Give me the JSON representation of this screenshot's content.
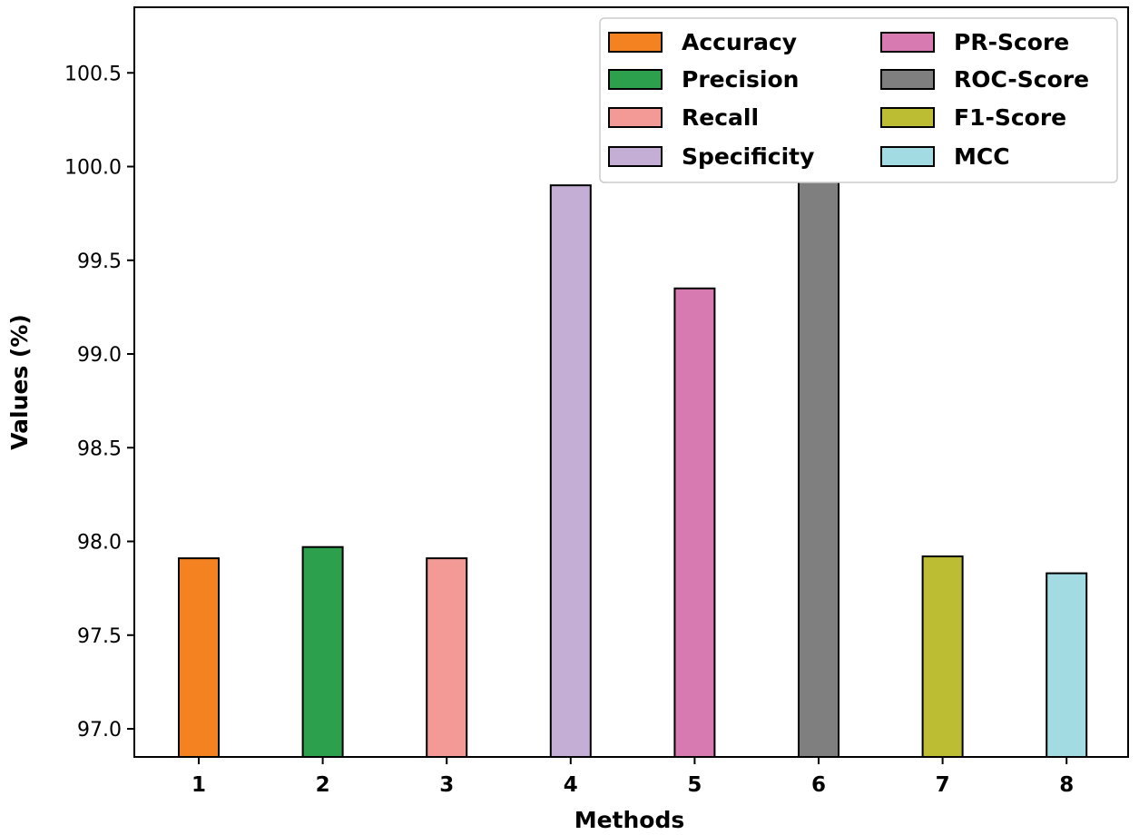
{
  "chart_data": {
    "type": "bar",
    "title": "",
    "xlabel": "Methods",
    "ylabel": "Values (%)",
    "categories": [
      "1",
      "2",
      "3",
      "4",
      "5",
      "6",
      "7",
      "8"
    ],
    "ylim": [
      96.85,
      100.85
    ],
    "yticks": [
      "97.0",
      "97.5",
      "98.0",
      "98.5",
      "99.0",
      "99.5",
      "100.0",
      "100.5"
    ],
    "series": [
      {
        "name": "Accuracy",
        "category": "1",
        "value": 97.91,
        "color": "#f58220"
      },
      {
        "name": "Precision",
        "category": "2",
        "value": 97.97,
        "color": "#2ca04c"
      },
      {
        "name": "Recall",
        "category": "3",
        "value": 97.91,
        "color": "#f39a96"
      },
      {
        "name": "Specificity",
        "category": "4",
        "value": 99.9,
        "color": "#c4aed6"
      },
      {
        "name": "PR-Score",
        "category": "5",
        "value": 99.35,
        "color": "#d87ab2"
      },
      {
        "name": "ROC-Score",
        "category": "6",
        "value": 99.97,
        "color": "#7f7f7f"
      },
      {
        "name": "F1-Score",
        "category": "7",
        "value": 97.92,
        "color": "#bcbd32"
      },
      {
        "name": "MCC",
        "category": "8",
        "value": 97.83,
        "color": "#a3dbe3"
      }
    ],
    "legend": {
      "position": "top-right",
      "columns": 2
    },
    "grid": false
  }
}
